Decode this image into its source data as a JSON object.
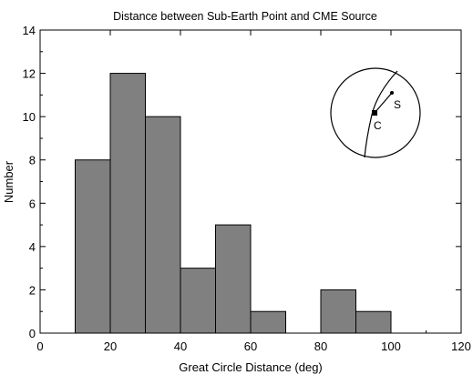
{
  "chart_data": {
    "type": "bar",
    "title": "Distance between Sub-Earth Point and CME Source",
    "xlabel": "Great Circle Distance (deg)",
    "ylabel": "Number",
    "xlim": [
      0,
      120
    ],
    "ylim": [
      0,
      14
    ],
    "xticks": [
      0,
      20,
      40,
      60,
      80,
      100,
      120
    ],
    "yticks": [
      0,
      2,
      4,
      6,
      8,
      10,
      12,
      14
    ],
    "bins": [
      {
        "start": 10,
        "end": 20,
        "count": 8
      },
      {
        "start": 20,
        "end": 30,
        "count": 12
      },
      {
        "start": 30,
        "end": 40,
        "count": 10
      },
      {
        "start": 40,
        "end": 50,
        "count": 3
      },
      {
        "start": 50,
        "end": 60,
        "count": 5
      },
      {
        "start": 60,
        "end": 70,
        "count": 1
      },
      {
        "start": 70,
        "end": 80,
        "count": 0
      },
      {
        "start": 80,
        "end": 90,
        "count": 2
      },
      {
        "start": 90,
        "end": 100,
        "count": 1
      }
    ],
    "bar_color": "#808080",
    "grid": false,
    "inset": {
      "labels": {
        "center": "C",
        "source": "S"
      }
    }
  }
}
